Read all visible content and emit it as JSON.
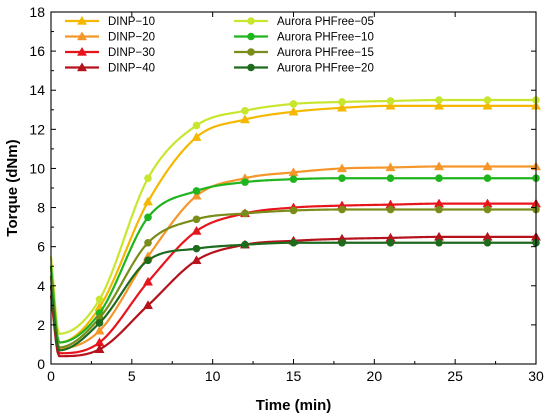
{
  "chart_data": {
    "type": "line",
    "xlabel": "Time (min)",
    "ylabel": "Torque (dNm)",
    "xlim": [
      0,
      30
    ],
    "ylim": [
      0,
      18
    ],
    "xticks": [
      0,
      5,
      10,
      15,
      20,
      25,
      30
    ],
    "yticks": [
      0,
      2,
      4,
      6,
      8,
      10,
      12,
      14,
      16,
      18
    ],
    "grid": false,
    "legend_position": "top-left, two columns",
    "series": [
      {
        "name": "DINP−10",
        "color": "#F5B800",
        "marker": "triangle",
        "x": [
          0,
          0.5,
          3,
          6,
          9,
          12,
          15,
          18,
          21,
          24,
          27,
          30
        ],
        "y": [
          5.0,
          1.1,
          2.9,
          8.3,
          11.6,
          12.5,
          12.9,
          13.1,
          13.2,
          13.2,
          13.2,
          13.2
        ]
      },
      {
        "name": "DINP−20",
        "color": "#F5962A",
        "marker": "triangle",
        "x": [
          0,
          0.5,
          3,
          6,
          9,
          12,
          15,
          18,
          21,
          24,
          27,
          30
        ],
        "y": [
          4.5,
          0.8,
          1.7,
          5.5,
          8.6,
          9.5,
          9.8,
          10.0,
          10.05,
          10.1,
          10.1,
          10.1
        ]
      },
      {
        "name": "DINP−30",
        "color": "#E8141C",
        "marker": "triangle",
        "x": [
          0,
          0.5,
          3,
          6,
          9,
          12,
          15,
          18,
          21,
          24,
          27,
          30
        ],
        "y": [
          4.0,
          0.55,
          1.1,
          4.2,
          6.8,
          7.7,
          8.0,
          8.1,
          8.15,
          8.2,
          8.2,
          8.2
        ]
      },
      {
        "name": "DINP−40",
        "color": "#B5121B",
        "marker": "triangle",
        "x": [
          0,
          0.5,
          3,
          6,
          9,
          12,
          15,
          18,
          21,
          24,
          27,
          30
        ],
        "y": [
          3.5,
          0.4,
          0.75,
          3.0,
          5.3,
          6.1,
          6.3,
          6.4,
          6.45,
          6.5,
          6.5,
          6.5
        ]
      },
      {
        "name": "Aurora PHFree−05",
        "color": "#C8E62E",
        "marker": "circle",
        "x": [
          0,
          0.5,
          3,
          6,
          9,
          12,
          15,
          18,
          21,
          24,
          27,
          30
        ],
        "y": [
          5.5,
          1.55,
          3.3,
          9.5,
          12.2,
          12.95,
          13.3,
          13.4,
          13.45,
          13.5,
          13.5,
          13.5
        ]
      },
      {
        "name": "Aurora PHFree−10",
        "color": "#1FB51F",
        "marker": "circle",
        "x": [
          0,
          0.5,
          3,
          6,
          9,
          12,
          15,
          18,
          21,
          24,
          27,
          30
        ],
        "y": [
          5.0,
          1.1,
          2.6,
          7.5,
          8.85,
          9.3,
          9.45,
          9.5,
          9.5,
          9.5,
          9.5,
          9.5
        ]
      },
      {
        "name": "Aurora PHFree−15",
        "color": "#7A8C1A",
        "marker": "circle",
        "x": [
          0,
          0.5,
          3,
          6,
          9,
          12,
          15,
          18,
          21,
          24,
          27,
          30
        ],
        "y": [
          4.5,
          0.85,
          2.35,
          6.2,
          7.4,
          7.7,
          7.85,
          7.9,
          7.9,
          7.9,
          7.9,
          7.9
        ]
      },
      {
        "name": "Aurora PHFree−20",
        "color": "#1E6B1E",
        "marker": "circle",
        "x": [
          0,
          0.5,
          3,
          6,
          9,
          12,
          15,
          18,
          21,
          24,
          27,
          30
        ],
        "y": [
          4.0,
          0.7,
          2.1,
          5.3,
          5.9,
          6.1,
          6.2,
          6.2,
          6.2,
          6.2,
          6.2,
          6.2
        ]
      }
    ]
  }
}
